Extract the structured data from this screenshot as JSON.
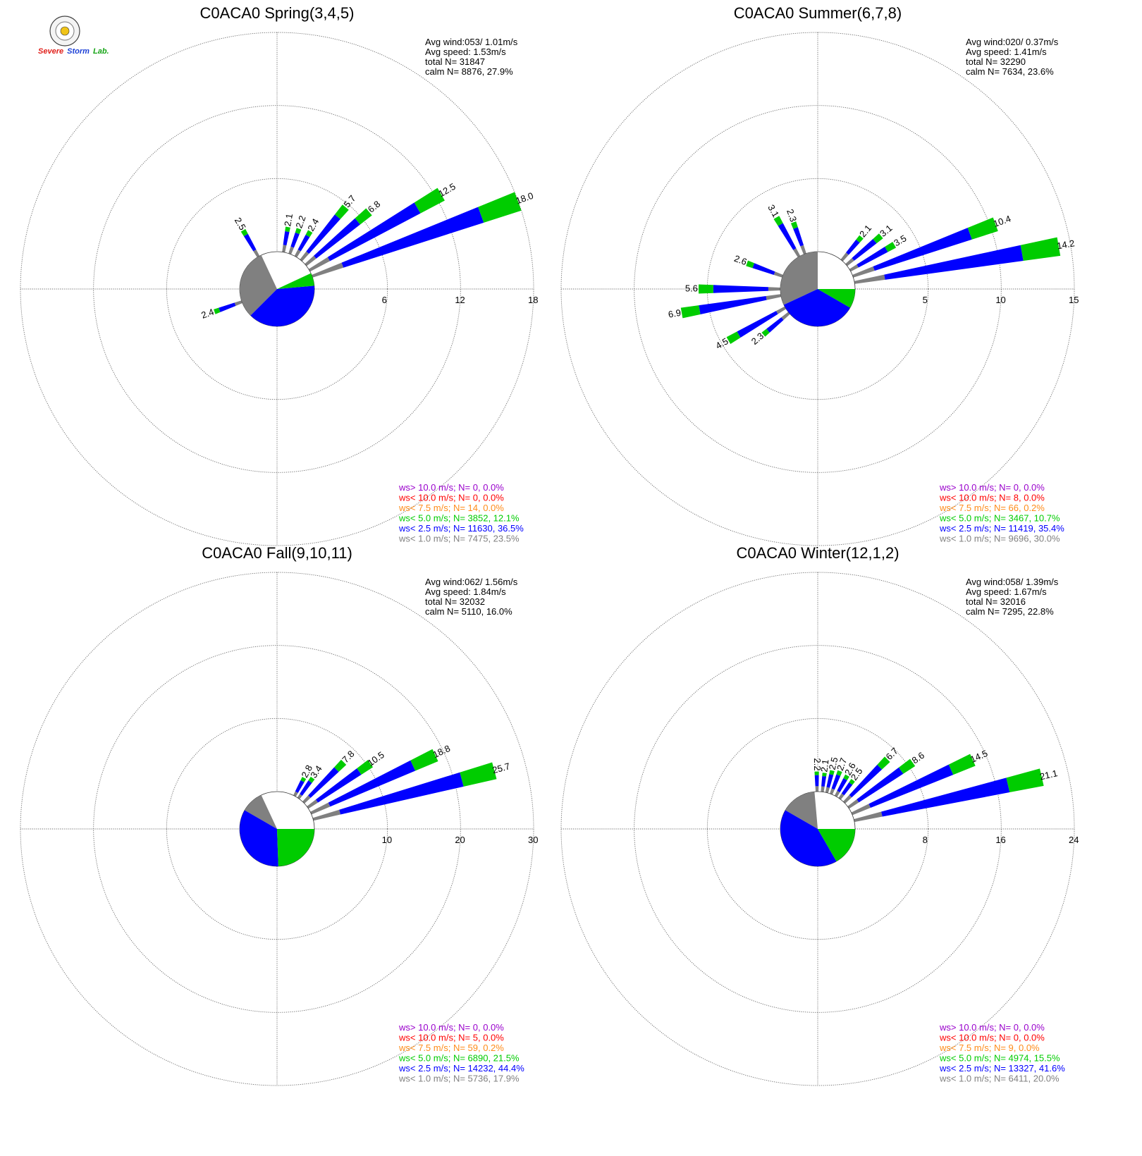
{
  "logo": {
    "lab_name_parts": [
      "Severe",
      "Storm",
      "Lab."
    ],
    "colors": {
      "severe": "#e0201b",
      "storm": "#1b3fd6",
      "lab": "#14a314",
      "seal_ring": "#f0c419"
    }
  },
  "colors": {
    "gray": "#808080",
    "blue": "#0000ff",
    "green": "#00cc00",
    "orange": "#ff8c1a",
    "red": "#ff0000",
    "purple": "#9900cc"
  },
  "chart_data": [
    {
      "type": "windrose",
      "title": "C0ACA0 Spring(3,4,5)",
      "stats": {
        "avg_wind": "Avg wind:053/ 1.01m/s",
        "avg_speed": "Avg speed: 1.53m/s",
        "total": "total N=     31847",
        "calm": "calm N=  8876,  27.9%"
      },
      "rings": [
        6,
        12,
        18
      ],
      "ring_labels": [
        "6",
        "12",
        "18"
      ],
      "calm_pct": 27.9,
      "pie": [
        {
          "category": "ws< 1.0 m/s",
          "start_deg": 225,
          "end_deg": 335,
          "color": "gray"
        },
        {
          "category": "ws< 2.5 m/s",
          "start_deg": 85,
          "end_deg": 225,
          "color": "blue"
        },
        {
          "category": "ws< 5.0 m/s",
          "start_deg": 65,
          "end_deg": 85,
          "color": "green"
        }
      ],
      "labeled_bars": [
        {
          "dir": 70,
          "total": 18.0,
          "label": "18.0"
        },
        {
          "dir": 60,
          "total": 12.5,
          "label": "12.5"
        },
        {
          "dir": 50,
          "total": 6.8,
          "label": "6.8"
        },
        {
          "dir": 40,
          "total": 5.7,
          "label": "5.7"
        },
        {
          "dir": 30,
          "total": 2.4,
          "label": "2.4"
        },
        {
          "dir": 20,
          "total": 2.2,
          "label": "2.2"
        },
        {
          "dir": 10,
          "total": 2.1,
          "label": "2.1"
        },
        {
          "dir": 330,
          "total": 2.5,
          "label": "2.5"
        },
        {
          "dir": 250,
          "total": 2.4,
          "label": "2.4"
        }
      ],
      "legend": [
        {
          "text": "ws> 10.0 m/s; N=     0,  0.0%",
          "color": "purple"
        },
        {
          "text": "ws< 10.0 m/s; N=     0,  0.0%",
          "color": "red"
        },
        {
          "text": "ws<  7.5 m/s; N=    14,  0.0%",
          "color": "orange"
        },
        {
          "text": "ws<  5.0 m/s; N=  3852, 12.1%",
          "color": "green"
        },
        {
          "text": "ws<  2.5 m/s; N= 11630, 36.5%",
          "color": "blue"
        },
        {
          "text": "ws<  1.0 m/s; N=  7475, 23.5%",
          "color": "gray"
        }
      ]
    },
    {
      "type": "windrose",
      "title": "C0ACA0 Summer(6,7,8)",
      "stats": {
        "avg_wind": "Avg wind:020/ 0.37m/s",
        "avg_speed": "Avg speed: 1.41m/s",
        "total": "total N=     32290",
        "calm": "calm N=  7634,  23.6%"
      },
      "rings": [
        5,
        10,
        15
      ],
      "ring_labels": [
        "5",
        "10",
        "15"
      ],
      "calm_pct": 23.6,
      "pie": [
        {
          "category": "ws< 1.0 m/s",
          "start_deg": 245,
          "end_deg": 360,
          "color": "gray"
        },
        {
          "category": "ws< 2.5 m/s",
          "start_deg": 120,
          "end_deg": 245,
          "color": "blue"
        },
        {
          "category": "ws< 5.0 m/s",
          "start_deg": 90,
          "end_deg": 120,
          "color": "green"
        }
      ],
      "labeled_bars": [
        {
          "dir": 80,
          "total": 14.2,
          "label": "14.2"
        },
        {
          "dir": 70,
          "total": 10.4,
          "label": "10.4"
        },
        {
          "dir": 60,
          "total": 3.5,
          "label": "3.5"
        },
        {
          "dir": 50,
          "total": 3.1,
          "label": "3.1"
        },
        {
          "dir": 40,
          "total": 2.1,
          "label": "2.1"
        },
        {
          "dir": 340,
          "total": 2.3,
          "label": "2.3"
        },
        {
          "dir": 330,
          "total": 3.1,
          "label": "3.1"
        },
        {
          "dir": 290,
          "total": 2.6,
          "label": "2.6"
        },
        {
          "dir": 270,
          "total": 5.6,
          "label": "5.6"
        },
        {
          "dir": 260,
          "total": 6.9,
          "label": "6.9"
        },
        {
          "dir": 240,
          "total": 4.5,
          "label": "4.5"
        },
        {
          "dir": 230,
          "total": 2.3,
          "label": "2.3"
        }
      ],
      "legend": [
        {
          "text": "ws> 10.0 m/s; N=     0,  0.0%",
          "color": "purple"
        },
        {
          "text": "ws< 10.0 m/s; N=     8,  0.0%",
          "color": "red"
        },
        {
          "text": "ws<  7.5 m/s; N=    66,  0.2%",
          "color": "orange"
        },
        {
          "text": "ws<  5.0 m/s; N=  3467, 10.7%",
          "color": "green"
        },
        {
          "text": "ws<  2.5 m/s; N= 11419, 35.4%",
          "color": "blue"
        },
        {
          "text": "ws<  1.0 m/s; N=  9696, 30.0%",
          "color": "gray"
        }
      ]
    },
    {
      "type": "windrose",
      "title": "C0ACA0 Fall(9,10,11)",
      "stats": {
        "avg_wind": "Avg wind:062/ 1.56m/s",
        "avg_speed": "Avg speed: 1.84m/s",
        "total": "total N=     32032",
        "calm": "calm N=  5110,  16.0%"
      },
      "rings": [
        10,
        20,
        30
      ],
      "ring_labels": [
        "10",
        "20",
        "30"
      ],
      "calm_pct": 16.0,
      "pie": [
        {
          "category": "ws< 1.0 m/s",
          "start_deg": 300,
          "end_deg": 335,
          "color": "gray"
        },
        {
          "category": "ws< 2.5 m/s",
          "start_deg": 178,
          "end_deg": 300,
          "color": "blue"
        },
        {
          "category": "ws< 5.0 m/s",
          "start_deg": 90,
          "end_deg": 178,
          "color": "green"
        }
      ],
      "labeled_bars": [
        {
          "dir": 75,
          "total": 25.7,
          "label": "25.7"
        },
        {
          "dir": 65,
          "total": 18.8,
          "label": "18.8"
        },
        {
          "dir": 55,
          "total": 10.5,
          "label": "10.5"
        },
        {
          "dir": 45,
          "total": 7.8,
          "label": "7.8"
        },
        {
          "dir": 35,
          "total": 3.4,
          "label": "3.4"
        },
        {
          "dir": 28,
          "total": 2.8,
          "label": "2.8"
        }
      ],
      "legend": [
        {
          "text": "ws> 10.0 m/s; N=     0,  0.0%",
          "color": "purple"
        },
        {
          "text": "ws< 10.0 m/s; N=     5,  0.0%",
          "color": "red"
        },
        {
          "text": "ws<  7.5 m/s; N=    59,  0.2%",
          "color": "orange"
        },
        {
          "text": "ws<  5.0 m/s; N=  6890, 21.5%",
          "color": "green"
        },
        {
          "text": "ws<  2.5 m/s; N= 14232, 44.4%",
          "color": "blue"
        },
        {
          "text": "ws<  1.0 m/s; N=  5736, 17.9%",
          "color": "gray"
        }
      ]
    },
    {
      "type": "windrose",
      "title": "C0ACA0 Winter(12,1,2)",
      "stats": {
        "avg_wind": "Avg wind:058/ 1.39m/s",
        "avg_speed": "Avg speed: 1.67m/s",
        "total": "total N=     32016",
        "calm": "calm N=  7295,  22.8%"
      },
      "rings": [
        8,
        16,
        24
      ],
      "ring_labels": [
        "8",
        "16",
        "24"
      ],
      "calm_pct": 22.8,
      "pie": [
        {
          "category": "ws< 1.0 m/s",
          "start_deg": 300,
          "end_deg": 355,
          "color": "gray"
        },
        {
          "category": "ws< 2.5 m/s",
          "start_deg": 150,
          "end_deg": 300,
          "color": "blue"
        },
        {
          "category": "ws< 5.0 m/s",
          "start_deg": 90,
          "end_deg": 150,
          "color": "green"
        }
      ],
      "labeled_bars": [
        {
          "dir": 77,
          "total": 21.1,
          "label": "21.1"
        },
        {
          "dir": 66,
          "total": 14.5,
          "label": "14.5"
        },
        {
          "dir": 55,
          "total": 8.6,
          "label": "8.6"
        },
        {
          "dir": 45,
          "total": 6.7,
          "label": "6.7"
        },
        {
          "dir": 36,
          "total": 2.5,
          "label": "2.5"
        },
        {
          "dir": 29,
          "total": 2.6,
          "label": "2.6"
        },
        {
          "dir": 21,
          "total": 2.7,
          "label": "2.7"
        },
        {
          "dir": 14,
          "total": 2.5,
          "label": "2.5"
        },
        {
          "dir": 7,
          "total": 2.1,
          "label": "2.1"
        },
        {
          "dir": 359,
          "total": 2.2,
          "label": "2.2"
        }
      ],
      "legend": [
        {
          "text": "ws> 10.0 m/s; N=     0,  0.0%",
          "color": "purple"
        },
        {
          "text": "ws< 10.0 m/s; N=     0,  0.0%",
          "color": "red"
        },
        {
          "text": "ws<  7.5 m/s; N=     9,  0.0%",
          "color": "orange"
        },
        {
          "text": "ws<  5.0 m/s; N=  4974, 15.5%",
          "color": "green"
        },
        {
          "text": "ws<  2.5 m/s; N= 13327, 41.6%",
          "color": "blue"
        },
        {
          "text": "ws<  1.0 m/s; N=  6411, 20.0%",
          "color": "gray"
        }
      ]
    }
  ]
}
